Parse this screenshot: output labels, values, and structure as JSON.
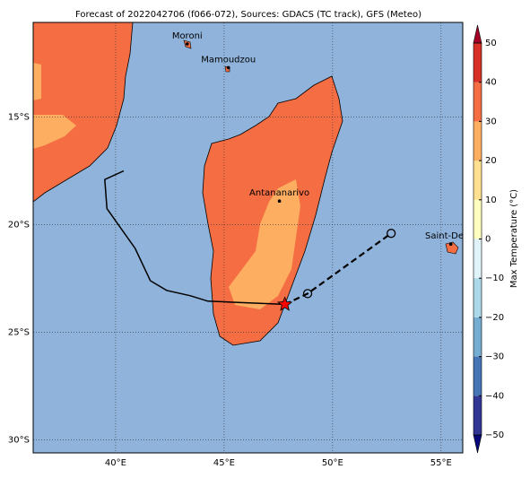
{
  "chart_data": {
    "type": "map",
    "title": "Forecast of 2022042706 (f066-072), Sources: GDACS (TC track), GFS (Meteo)",
    "xlim": [
      36.2,
      56
    ],
    "ylim": [
      -30.6,
      -10.6
    ],
    "xticks": [
      {
        "value": 40,
        "label": "40°E"
      },
      {
        "value": 45,
        "label": "45°E"
      },
      {
        "value": 50,
        "label": "50°E"
      },
      {
        "value": 55,
        "label": "55°E"
      }
    ],
    "yticks": [
      {
        "value": -15,
        "label": "15°S"
      },
      {
        "value": -20,
        "label": "20°S"
      },
      {
        "value": -25,
        "label": "25°S"
      },
      {
        "value": -30,
        "label": "30°S"
      }
    ],
    "grid": true,
    "cities": [
      {
        "name": "Moroni",
        "lon": 43.3,
        "lat": -11.6
      },
      {
        "name": "Mamoudzou",
        "lon": 45.2,
        "lat": -12.7
      },
      {
        "name": "Antananarivo",
        "lon": 47.55,
        "lat": -18.9
      },
      {
        "name": "Saint-Denis",
        "lon": 55.45,
        "lat": -20.9
      }
    ],
    "track": {
      "lon": [
        40.37,
        39.5,
        39.6,
        40.9,
        41.6,
        42.35,
        43.45,
        44.25,
        45.4,
        47.8
      ],
      "lat": [
        -17.5,
        -17.9,
        -19.25,
        -21.1,
        -22.6,
        -23.05,
        -23.3,
        -23.55,
        -23.6,
        -23.7
      ],
      "color": "#000000"
    },
    "forecast": {
      "lon": [
        47.8,
        48.85,
        52.7
      ],
      "lat": [
        -23.7,
        -23.2,
        -20.4
      ],
      "color": "#000000",
      "marker_color": "#ff0000"
    },
    "colorbar": {
      "label": "Max Temperature (°C)",
      "ticks": [
        {
          "value": -50,
          "label": "−50"
        },
        {
          "value": -40,
          "label": "−40"
        },
        {
          "value": -30,
          "label": "−30"
        },
        {
          "value": -20,
          "label": "−20"
        },
        {
          "value": -10,
          "label": "−10"
        },
        0,
        10,
        20,
        30,
        40,
        50
      ],
      "colors": [
        "#313695",
        "#4575b4",
        "#74add1",
        "#abd9e9",
        "#e0f3f8",
        "#ffffbf",
        "#fee090",
        "#fdae61",
        "#f46d43",
        "#d73027"
      ],
      "under_color": "#08087a",
      "over_color": "#a50026"
    }
  }
}
